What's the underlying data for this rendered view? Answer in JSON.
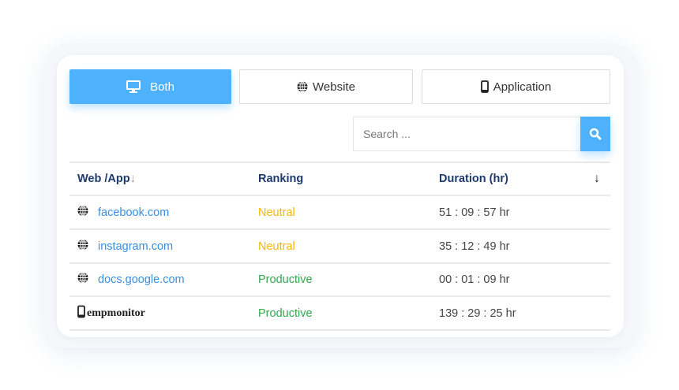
{
  "tabs": [
    {
      "label": "Both",
      "icon": "monitor-icon",
      "active": true
    },
    {
      "label": "Website",
      "icon": "globe-icon",
      "active": false
    },
    {
      "label": "Application",
      "icon": "mobile-icon",
      "active": false
    }
  ],
  "search": {
    "placeholder": "Search ..."
  },
  "table": {
    "headers": [
      "Web /App",
      "Ranking",
      "Duration (hr)"
    ],
    "rows": [
      {
        "type": "website",
        "name": "facebook.com",
        "ranking": "Neutral",
        "duration": "51 : 09 : 57 hr"
      },
      {
        "type": "website",
        "name": "instagram.com",
        "ranking": "Neutral",
        "duration": "35 : 12 : 49 hr"
      },
      {
        "type": "website",
        "name": "docs.google.com",
        "ranking": "Productive",
        "duration": "00 : 01 : 09 hr"
      },
      {
        "type": "application",
        "name": "empmonitor",
        "ranking": "Productive",
        "duration": "139 : 29 : 25 hr"
      }
    ]
  },
  "colors": {
    "accent": "#4db1fb",
    "neutral": "#f5b800",
    "productive": "#2fa84f",
    "link": "#3a8ee0",
    "header": "#1d3a6e"
  }
}
